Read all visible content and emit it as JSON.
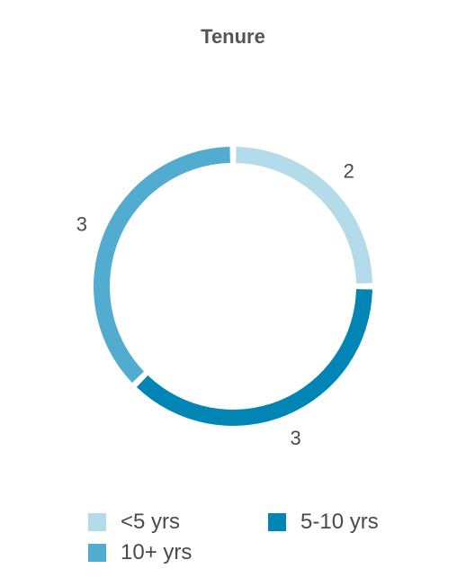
{
  "chart_data": {
    "type": "pie",
    "title": "Tenure",
    "categories": [
      "<5 yrs",
      "5-10 yrs",
      "10+ yrs"
    ],
    "values": [
      2,
      3,
      3
    ],
    "colors": [
      "#b4dbe9",
      "#0085b5",
      "#51acd0"
    ],
    "data_labels": [
      "2",
      "3",
      "3"
    ],
    "donut": true,
    "legend_position": "bottom"
  }
}
